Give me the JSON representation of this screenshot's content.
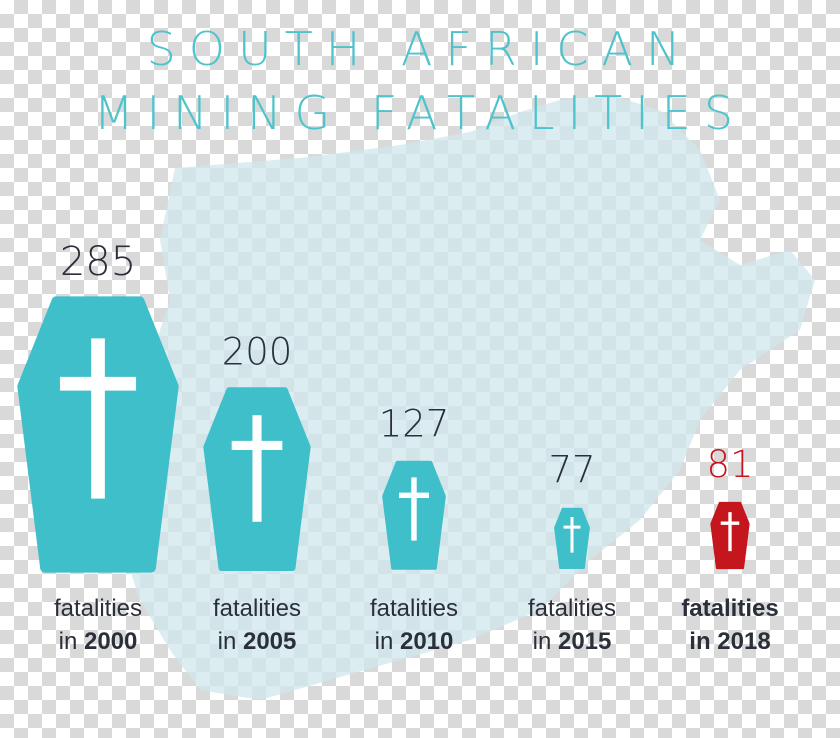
{
  "title_lines": [
    "SOUTH AFRICAN",
    "MINING FATALITIES"
  ],
  "colors": {
    "title": "#4ec3cb",
    "coffin": "#3fbfc9",
    "coffin_highlight": "#c4161c",
    "cross": "#ffffff",
    "value_text": "#2a2f3a",
    "value_highlight": "#c4161c",
    "map": "#cfe7ec"
  },
  "chart_data": {
    "type": "bar",
    "title": "SOUTH AFRICAN MINING FATALITIES",
    "categories": [
      "2000",
      "2005",
      "2010",
      "2015",
      "2018"
    ],
    "values": [
      285,
      200,
      127,
      77,
      81
    ],
    "highlight_category": "2018",
    "mark_shape": "coffin-with-cross",
    "labels": [
      {
        "word": "fatalities",
        "prefix": "in",
        "year": "2000"
      },
      {
        "word": "fatalities",
        "prefix": "in",
        "year": "2005"
      },
      {
        "word": "fatalities",
        "prefix": "in",
        "year": "2010"
      },
      {
        "word": "fatalities",
        "prefix": "in",
        "year": "2015"
      },
      {
        "word": "fatalities",
        "prefix": "in",
        "year": "2018"
      }
    ]
  }
}
